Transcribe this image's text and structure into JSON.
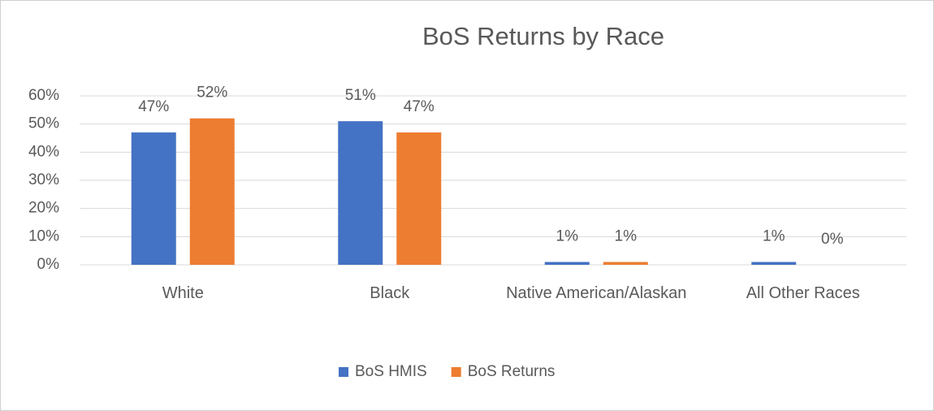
{
  "chart_data": {
    "type": "bar",
    "title": "BoS Returns by Race",
    "categories": [
      "White",
      "Black",
      "Native American/Alaskan",
      "All Other Races"
    ],
    "series": [
      {
        "name": "BoS HMIS",
        "color": "#4472c4",
        "values": [
          47,
          51,
          1,
          1
        ],
        "value_labels": [
          "47%",
          "51%",
          "1%",
          "1%"
        ]
      },
      {
        "name": "BoS Returns",
        "color": "#ed7d31",
        "values": [
          52,
          47,
          1,
          0
        ],
        "value_labels": [
          "52%",
          "47%",
          "1%",
          "0%"
        ]
      }
    ],
    "ylim": [
      0,
      60
    ],
    "yticks": [
      {
        "value": 0,
        "label": "0%"
      },
      {
        "value": 10,
        "label": "10%"
      },
      {
        "value": 20,
        "label": "20%"
      },
      {
        "value": 30,
        "label": "30%"
      },
      {
        "value": 40,
        "label": "40%"
      },
      {
        "value": 50,
        "label": "50%"
      },
      {
        "value": 60,
        "label": "60%"
      }
    ],
    "grid": true,
    "legend": "bottom"
  }
}
